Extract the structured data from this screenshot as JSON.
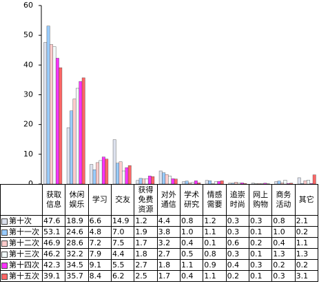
{
  "chart_data": {
    "type": "bar",
    "categories": [
      "获取信息",
      "休闲娱乐",
      "学习",
      "交友",
      "获得免费资源",
      "对外通信",
      "学术研究",
      "情感需要",
      "追崇时尚",
      "网上购物",
      "商务活动",
      "其它"
    ],
    "series": [
      {
        "name": "第十次",
        "color": "#dde2ee",
        "values": [
          47.6,
          18.9,
          6.6,
          14.9,
          1.2,
          4.4,
          0.8,
          1.2,
          0.3,
          0.3,
          0.8,
          2.1
        ],
        "value_labels": [
          "47.6",
          "18.9",
          "6.6",
          "14.9",
          "1.2",
          "4.4",
          "0.8",
          "1.2",
          "0.3",
          "0.3",
          "0.8",
          "2.1"
        ]
      },
      {
        "name": "第十一次",
        "color": "#99ccff",
        "values": [
          53.1,
          24.6,
          4.8,
          7.0,
          1.9,
          3.8,
          1.0,
          1.1,
          0.3,
          0.1,
          1.0,
          0.2
        ],
        "value_labels": [
          "53.1",
          "24.6",
          "4.8",
          "7.0",
          "1.9",
          "3.8",
          "1.0",
          "1.1",
          "0.3",
          "0.1",
          "1.0",
          "0.2"
        ]
      },
      {
        "name": "第十二次",
        "color": "#ffcccc",
        "values": [
          46.9,
          28.6,
          7.2,
          7.5,
          1.7,
          3.2,
          0.4,
          0.1,
          0.6,
          0.2,
          0.4,
          1.1
        ],
        "value_labels": [
          "46.9",
          "28.6",
          "7.2",
          "7.5",
          "1.7",
          "3.2",
          "0.4",
          "0.1",
          "0.6",
          "0.2",
          "0.4",
          "1.1"
        ]
      },
      {
        "name": "第十三次",
        "color": "#f2fafa",
        "values": [
          46.2,
          32.2,
          7.9,
          4.4,
          1.8,
          2.7,
          0.5,
          0.8,
          0.3,
          0.1,
          1.3,
          1.3
        ],
        "value_labels": [
          "46.2",
          "32.2",
          "7.9",
          "4.4",
          "1.8",
          "2.7",
          "0.5",
          "0.8",
          "0.3",
          "0.1",
          "1.3",
          "1.3"
        ]
      },
      {
        "name": "第十四次",
        "color": "#ff33ff",
        "values": [
          42.3,
          34.5,
          9.1,
          5.5,
          2.7,
          1.8,
          1.1,
          0.9,
          0.4,
          0.3,
          0.2,
          0.2
        ],
        "value_labels": [
          "42.3",
          "34.5",
          "9.1",
          "5.5",
          "2.7",
          "1.8",
          "1.1",
          "0.9",
          "0.4",
          "0.3",
          "0.2",
          "0.2"
        ]
      },
      {
        "name": "第十五次",
        "color": "#ff6666",
        "values": [
          39.1,
          35.7,
          8.4,
          6.2,
          2.5,
          1.7,
          0.4,
          1.1,
          0.2,
          0.1,
          0.3,
          3.1
        ],
        "value_labels": [
          "39.1",
          "35.7",
          "8.4",
          "6.2",
          "2.5",
          "1.7",
          "0.4",
          "1.1",
          "0.2",
          "0.1",
          "0.3",
          "3.1"
        ]
      }
    ],
    "ylim": [
      0,
      60
    ],
    "yticks": [
      0,
      10,
      20,
      30,
      40,
      50,
      60
    ],
    "grid": false
  }
}
